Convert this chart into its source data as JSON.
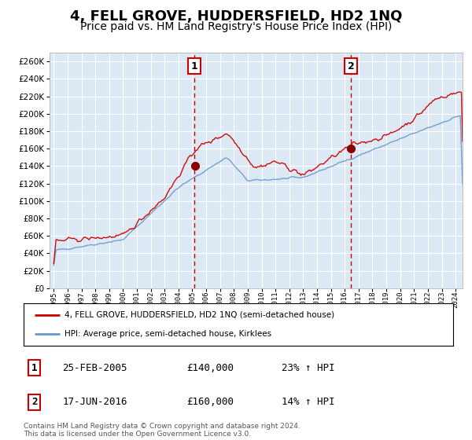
{
  "title": "4, FELL GROVE, HUDDERSFIELD, HD2 1NQ",
  "subtitle": "Price paid vs. HM Land Registry's House Price Index (HPI)",
  "title_fontsize": 13,
  "subtitle_fontsize": 10,
  "background_color": "#ffffff",
  "plot_bg_color": "#dce9f5",
  "grid_color": "#ffffff",
  "ylim": [
    0,
    270000
  ],
  "yticks": [
    0,
    20000,
    40000,
    60000,
    80000,
    100000,
    120000,
    140000,
    160000,
    180000,
    200000,
    220000,
    240000,
    260000
  ],
  "ytick_labels": [
    "£0",
    "£20K",
    "£40K",
    "£60K",
    "£80K",
    "£100K",
    "£120K",
    "£140K",
    "£160K",
    "£180K",
    "£200K",
    "£220K",
    "£240K",
    "£260K"
  ],
  "hpi_line_color": "#6699cc",
  "price_line_color": "#cc0000",
  "sale1_date": "25-FEB-2005",
  "sale1_price": 140000,
  "sale1_pct": "23%",
  "sale2_date": "17-JUN-2016",
  "sale2_price": 160000,
  "sale2_pct": "14%",
  "legend_label1": "4, FELL GROVE, HUDDERSFIELD, HD2 1NQ (semi-detached house)",
  "legend_label2": "HPI: Average price, semi-detached house, Kirklees",
  "footer": "Contains HM Land Registry data © Crown copyright and database right 2024.\nThis data is licensed under the Open Government Licence v3.0.",
  "x_start_year": 1995,
  "x_end_year": 2024,
  "xtick_years": [
    1995,
    1996,
    1997,
    1998,
    1999,
    2000,
    2001,
    2002,
    2003,
    2004,
    2005,
    2006,
    2007,
    2008,
    2009,
    2010,
    2011,
    2012,
    2013,
    2014,
    2015,
    2016,
    2017,
    2018,
    2019,
    2020,
    2021,
    2022,
    2023,
    2024
  ]
}
